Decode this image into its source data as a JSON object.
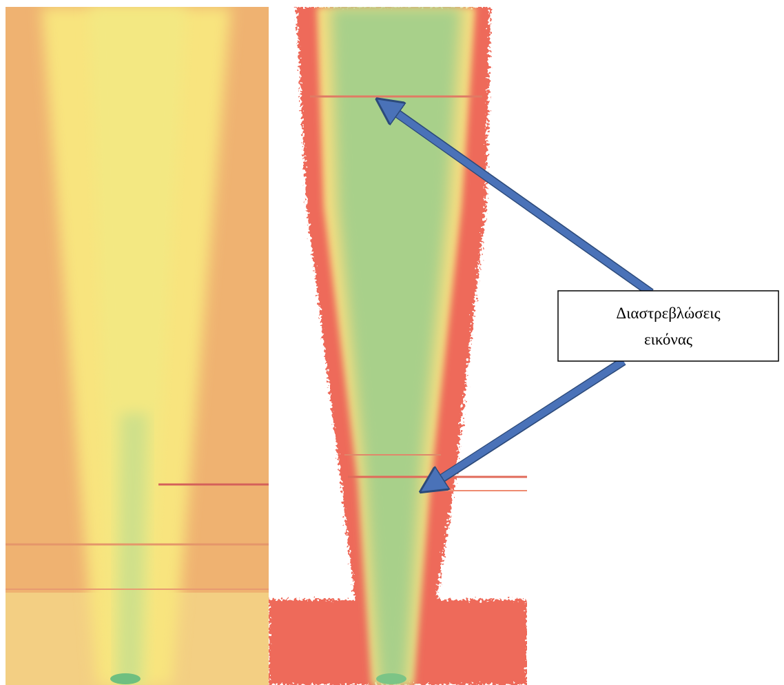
{
  "annotation": {
    "lines": [
      "Διαστρεβλώσεις",
      "εικόνας"
    ]
  }
}
